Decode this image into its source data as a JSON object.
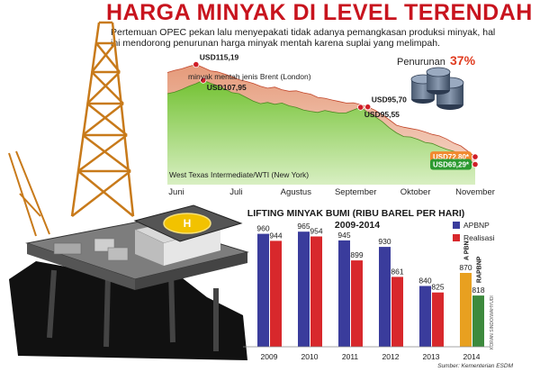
{
  "header": {
    "title": "HARGA MINYAK DI LEVEL TERENDAH",
    "subtitle": "Pertemuan OPEC pekan lalu menyepakati tidak adanya pemangkasan produksi minyak, hal ini mendorong penurunan harga minyak mentah karena suplai yang melimpah."
  },
  "chart_data": [
    {
      "type": "area",
      "months": [
        "Juni",
        "Juli",
        "Agustus",
        "September",
        "Oktober",
        "November"
      ],
      "series": [
        {
          "name": "minyak mentah jenis Brent (London)",
          "color": "#e8a98c",
          "values": [
            111.5,
            112.5,
            113.2,
            114.3,
            115.19,
            113.8,
            112.3,
            111.8,
            110.8,
            109.6,
            108.2,
            107.4,
            106.5,
            105.2,
            104.3,
            104.8,
            103.6,
            102.9,
            103.1,
            102.2,
            101.6,
            100.1,
            99.7,
            98.9,
            98.2,
            97.5,
            97.6,
            96.8,
            95.7,
            94.2,
            92.1,
            89.8,
            87.3,
            86.4,
            85.8,
            85.2,
            84.2,
            83.1,
            82.4,
            81.0,
            79.1,
            77.8,
            75.3,
            72.8
          ]
        },
        {
          "name": "West Texas Intermediate/WTI (New York)",
          "color": "#8ccf4a",
          "values": [
            101.8,
            102.5,
            103.7,
            105.2,
            106.4,
            107.95,
            106.6,
            105.4,
            104.0,
            102.3,
            101.8,
            100.1,
            98.4,
            97.2,
            97.8,
            96.9,
            97.5,
            96.2,
            95.5,
            94.3,
            93.7,
            93.2,
            94.1,
            93.4,
            92.9,
            93.0,
            94.3,
            95.55,
            93.1,
            91.2,
            89.0,
            86.1,
            83.8,
            82.1,
            81.9,
            80.8,
            79.4,
            78.9,
            77.5,
            76.2,
            75.3,
            74.0,
            71.6,
            69.29
          ]
        }
      ],
      "annotations": [
        {
          "label": "USD115,19",
          "series": 0,
          "index": 4
        },
        {
          "label": "USD107,95",
          "series": 1,
          "index": 5
        },
        {
          "label": "USD95,70",
          "series": 0,
          "index": 28
        },
        {
          "label": "USD95,55",
          "series": 1,
          "index": 27
        },
        {
          "label": "USD72,80*",
          "series": 0,
          "index": 43
        },
        {
          "label": "USD69,29*",
          "series": 1,
          "index": 43
        }
      ],
      "ylim": [
        60,
        120
      ],
      "decline_label": "Penurunan",
      "decline_value": "37%"
    },
    {
      "type": "bar",
      "title": "LIFTING MINYAK BUMI (RIBU BAREL PER HARI) 2009-2014",
      "categories": [
        "2009",
        "2010",
        "2011",
        "2012",
        "2013",
        "2014"
      ],
      "series": [
        {
          "name": "APBNP",
          "color": "#3a3c9c",
          "values": [
            960,
            965,
            945,
            930,
            840,
            870
          ]
        },
        {
          "name": "Realisasi",
          "color": "#d8282c",
          "values": [
            944,
            954,
            899,
            861,
            825,
            818
          ]
        }
      ],
      "bar_2014_labels": [
        "A PBN",
        "RAPBNP"
      ],
      "bar_2014_colors": [
        "#e8a020",
        "#3d8a3d"
      ],
      "ylim": [
        700,
        980
      ],
      "source": "Sumber: Kementerian ESDM",
      "credit": "KORAN SINDO/WAHYUDI"
    }
  ],
  "colors": {
    "title_red": "#c8141e",
    "decline_red": "#e03c20",
    "brent_tag": "#f08a30",
    "wti_tag": "#2c9a30"
  }
}
